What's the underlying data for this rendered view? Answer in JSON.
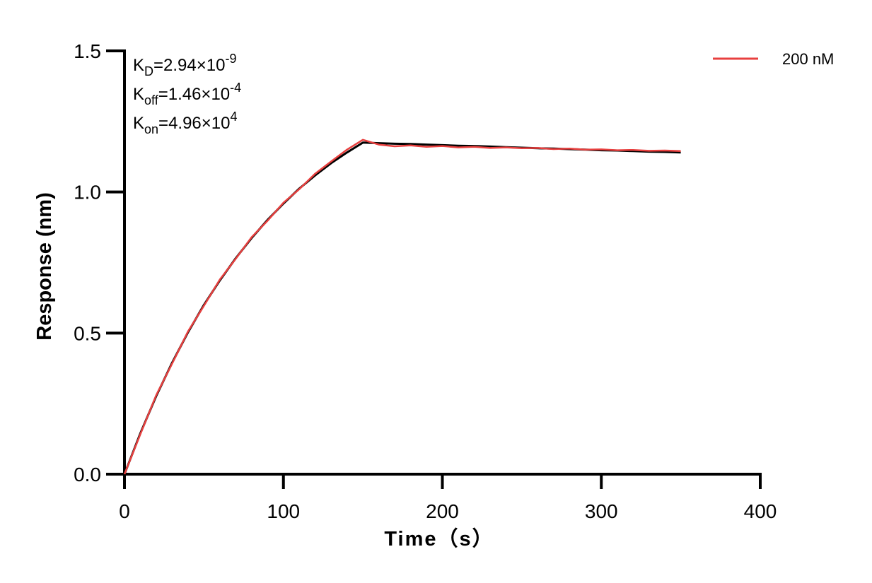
{
  "chart_data": {
    "type": "line",
    "x_label": "Time（s）",
    "y_label": "Response (nm)",
    "annotations": [
      {
        "symbol": "K",
        "subscript": "D",
        "text": "=2.94×10",
        "superscript": "-9"
      },
      {
        "symbol": "K",
        "subscript": "off",
        "text": "=1.46×10",
        "superscript": "-4"
      },
      {
        "symbol": "K",
        "subscript": "on",
        "text": "=4.96×10",
        "superscript": "4"
      }
    ],
    "x": [
      0,
      10,
      20,
      30,
      40,
      50,
      60,
      70,
      80,
      90,
      100,
      110,
      120,
      130,
      140,
      150,
      160,
      170,
      180,
      190,
      200,
      210,
      220,
      230,
      240,
      250,
      260,
      270,
      280,
      290,
      300,
      310,
      320,
      330,
      340,
      350
    ],
    "series": [
      {
        "color": "#000000",
        "values": [
          0,
          0.145,
          0.277,
          0.395,
          0.503,
          0.6,
          0.687,
          0.765,
          0.837,
          0.901,
          0.959,
          1.012,
          1.059,
          1.102,
          1.14,
          1.175,
          1.173,
          1.171,
          1.17,
          1.168,
          1.166,
          1.164,
          1.163,
          1.161,
          1.159,
          1.157,
          1.155,
          1.154,
          1.152,
          1.15,
          1.148,
          1.147,
          1.145,
          1.143,
          1.142,
          1.14
        ]
      },
      {
        "name": "200 nM",
        "color": "#e8403f",
        "values": [
          0,
          0.142,
          0.28,
          0.392,
          0.506,
          0.597,
          0.69,
          0.763,
          0.84,
          0.898,
          0.962,
          1.01,
          1.065,
          1.108,
          1.15,
          1.185,
          1.168,
          1.162,
          1.165,
          1.16,
          1.163,
          1.158,
          1.16,
          1.156,
          1.158,
          1.155,
          1.156,
          1.152,
          1.154,
          1.15,
          1.151,
          1.148,
          1.149,
          1.146,
          1.147,
          1.145
        ]
      }
    ],
    "xlim": [
      0,
      400
    ],
    "ylim": [
      0,
      1.5
    ],
    "xticks": [
      0,
      100,
      200,
      300,
      400
    ],
    "yticks": [
      {
        "value": 0,
        "label": "0.0"
      },
      0.5,
      {
        "value": 1,
        "label": "1.0"
      },
      1.5
    ],
    "legend": "top-right"
  }
}
